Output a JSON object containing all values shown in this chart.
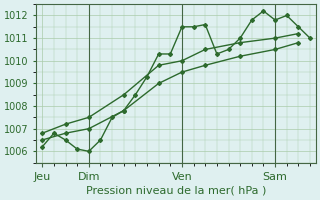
{
  "background_color": "#dff0f0",
  "plot_bg_color": "#dff0f0",
  "grid_color": "#aaccaa",
  "line_color": "#2d6a2d",
  "title": "Pression niveau de la mer( hPa )",
  "ylim": [
    1005.5,
    1012.5
  ],
  "yticks": [
    1006,
    1007,
    1008,
    1009,
    1010,
    1011,
    1012
  ],
  "day_positions": [
    0,
    8,
    24,
    40
  ],
  "day_labels": [
    "Jeu",
    "Dim",
    "Ven",
    "Sam"
  ],
  "series1_x": [
    0,
    2,
    4,
    6,
    8,
    10,
    12,
    14,
    16,
    18,
    20,
    22,
    24,
    26,
    28,
    30,
    32,
    34,
    36,
    38,
    40,
    42,
    44,
    46
  ],
  "series1_y": [
    1006.2,
    1006.8,
    1006.5,
    1006.1,
    1006.0,
    1006.5,
    1007.5,
    1007.8,
    1008.5,
    1009.3,
    1010.3,
    1010.3,
    1011.5,
    1011.5,
    1011.6,
    1010.3,
    1010.5,
    1011.0,
    1011.8,
    1012.2,
    1011.8,
    1012.0,
    1011.5,
    1011.0
  ],
  "series2_x": [
    0,
    4,
    8,
    14,
    20,
    24,
    28,
    34,
    40,
    44
  ],
  "series2_y": [
    1006.8,
    1007.2,
    1007.5,
    1008.5,
    1009.8,
    1010.0,
    1010.5,
    1010.8,
    1011.0,
    1011.2
  ],
  "series3_x": [
    0,
    4,
    8,
    14,
    20,
    24,
    28,
    34,
    40,
    44
  ],
  "series3_y": [
    1006.5,
    1006.8,
    1007.0,
    1007.8,
    1009.0,
    1009.5,
    1009.8,
    1010.2,
    1010.5,
    1010.8
  ],
  "vline_positions": [
    8,
    24,
    40
  ],
  "xlabel_fontsize": 8,
  "tick_fontsize": 7
}
